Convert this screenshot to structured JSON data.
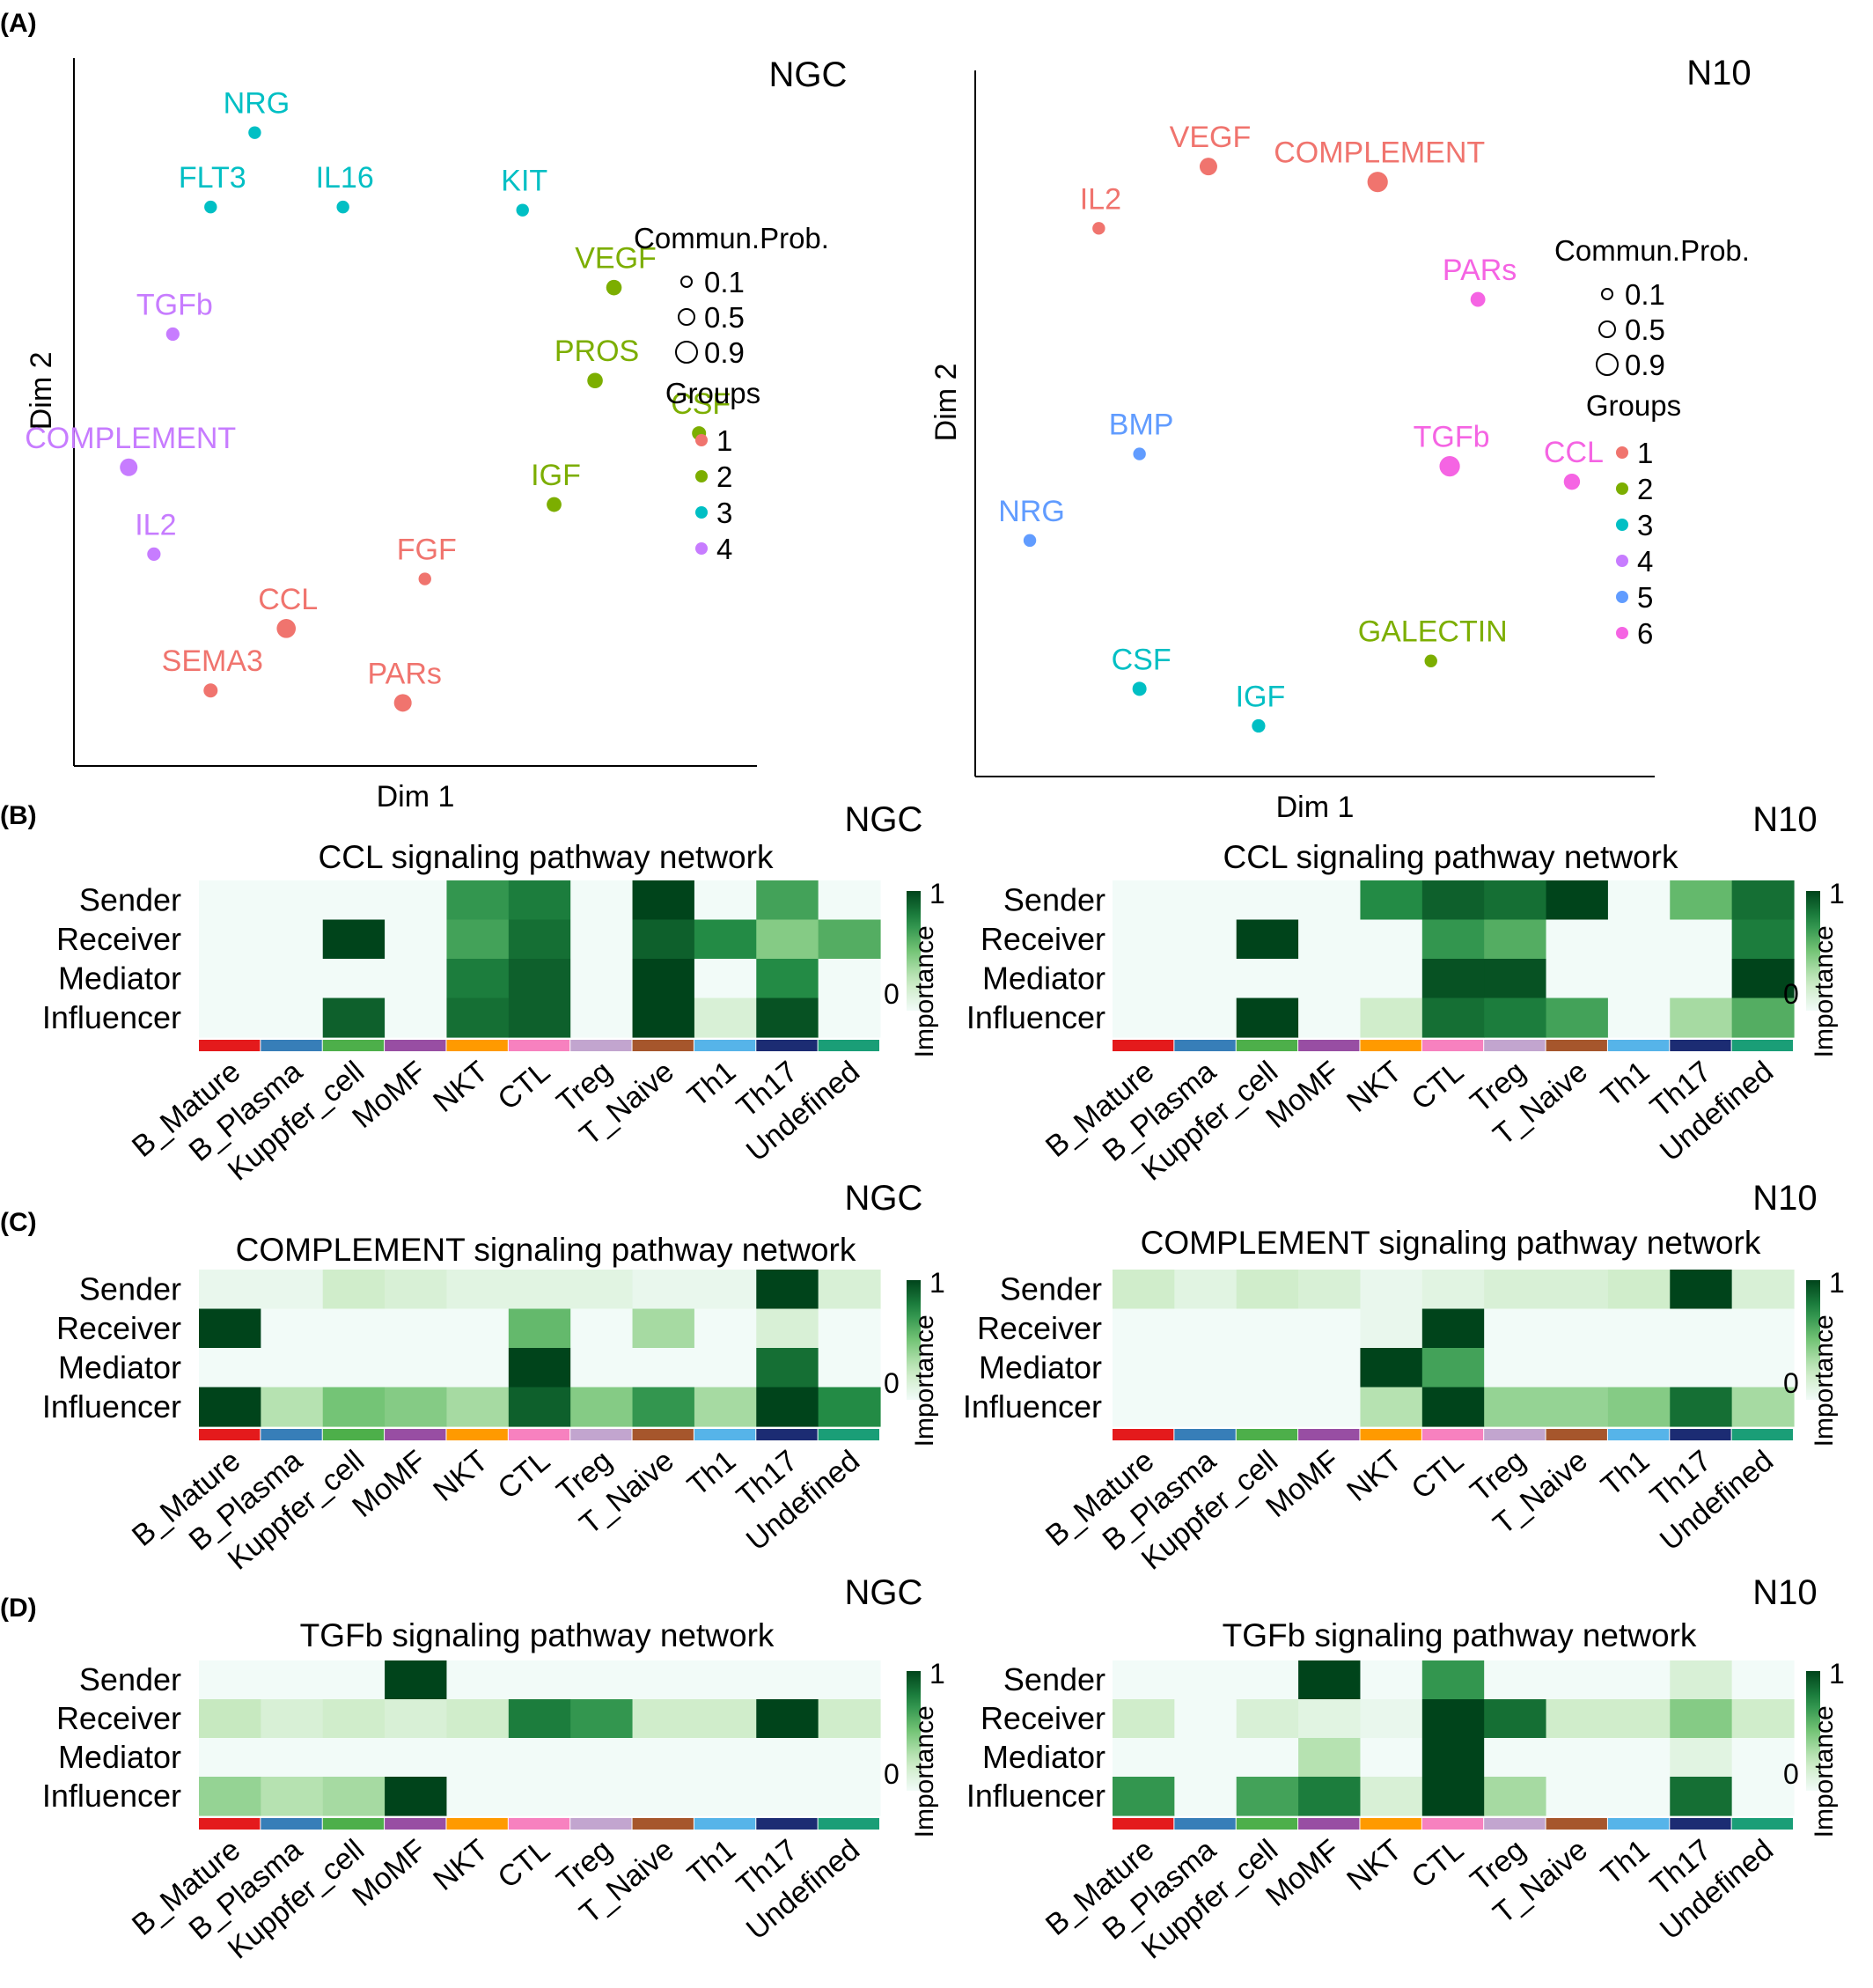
{
  "panel_letters": {
    "a": "(A)",
    "b": "(B)",
    "c": "(C)",
    "d": "(D)"
  },
  "scatter_legend": {
    "size_title": "Commun.Prob.",
    "size_values": [
      "0.1",
      "0.5",
      "0.9"
    ],
    "group_title": "Groups"
  },
  "heat_legend": {
    "title": "Importance",
    "max_label": "1",
    "min_label": "0",
    "low_color": "#f2fbf8",
    "high_color": "#00441b"
  },
  "cell_types": [
    "B_Mature",
    "B_Plasma",
    "Kuppfer_cell",
    "MoMF",
    "NKT",
    "CTL",
    "Treg",
    "T_Naive",
    "Th1",
    "Th17",
    "Undefined"
  ],
  "cell_colors": [
    "#e41a1c",
    "#377eb8",
    "#4daf4a",
    "#984ea3",
    "#ff9a00",
    "#f781bf",
    "#c2a5cf",
    "#a6562c",
    "#56b4e9",
    "#1c2c73",
    "#1a9e77"
  ],
  "roles": [
    "Sender",
    "Receiver",
    "Mediator",
    "Influencer"
  ],
  "chart_data": [
    {
      "type": "scatter",
      "id": "A-NGC",
      "title": "NGC",
      "xlabel": "Dim 1",
      "ylabel": "Dim 2",
      "group_colors": {
        "1": "#f0746e",
        "2": "#7cae00",
        "3": "#00bfc4",
        "4": "#c77cff"
      },
      "groups": [
        "1",
        "2",
        "3",
        "4"
      ],
      "points": [
        {
          "label": "NRG",
          "x": 0.245,
          "y": 0.965,
          "group": "3",
          "prob": 0.15
        },
        {
          "label": "FLT3",
          "x": 0.175,
          "y": 0.845,
          "group": "3",
          "prob": 0.15
        },
        {
          "label": "IL16",
          "x": 0.385,
          "y": 0.845,
          "group": "3",
          "prob": 0.15
        },
        {
          "label": "KIT",
          "x": 0.67,
          "y": 0.84,
          "group": "3",
          "prob": 0.15
        },
        {
          "label": "VEGF",
          "x": 0.815,
          "y": 0.715,
          "group": "2",
          "prob": 0.35
        },
        {
          "label": "PROS",
          "x": 0.785,
          "y": 0.565,
          "group": "2",
          "prob": 0.35
        },
        {
          "label": "CSF",
          "x": 0.95,
          "y": 0.48,
          "group": "2",
          "prob": 0.25
        },
        {
          "label": "IGF",
          "x": 0.72,
          "y": 0.365,
          "group": "2",
          "prob": 0.3
        },
        {
          "label": "TGFb",
          "x": 0.115,
          "y": 0.64,
          "group": "4",
          "prob": 0.2
        },
        {
          "label": "COMPLEMENT",
          "x": 0.045,
          "y": 0.425,
          "group": "4",
          "prob": 0.5
        },
        {
          "label": "IL2",
          "x": 0.085,
          "y": 0.285,
          "group": "4",
          "prob": 0.2
        },
        {
          "label": "FGF",
          "x": 0.515,
          "y": 0.245,
          "group": "1",
          "prob": 0.15
        },
        {
          "label": "CCL",
          "x": 0.295,
          "y": 0.165,
          "group": "1",
          "prob": 0.6
        },
        {
          "label": "SEMA3",
          "x": 0.175,
          "y": 0.065,
          "group": "1",
          "prob": 0.25
        },
        {
          "label": "PARs",
          "x": 0.48,
          "y": 0.045,
          "group": "1",
          "prob": 0.5
        }
      ]
    },
    {
      "type": "scatter",
      "id": "A-N10",
      "title": "N10",
      "xlabel": "Dim 1",
      "ylabel": "Dim 2",
      "group_colors": {
        "1": "#f0746e",
        "2": "#7cae00",
        "3": "#00bfc4",
        "4": "#c77cff",
        "5": "#619cff",
        "6": "#f564e3"
      },
      "groups": [
        "1",
        "2",
        "3",
        "4",
        "5",
        "6"
      ],
      "points": [
        {
          "label": "VEGF",
          "x": 0.33,
          "y": 0.93,
          "group": "1",
          "prob": 0.5
        },
        {
          "label": "COMPLEMENT",
          "x": 0.6,
          "y": 0.905,
          "group": "1",
          "prob": 0.7
        },
        {
          "label": "IL2",
          "x": 0.155,
          "y": 0.83,
          "group": "1",
          "prob": 0.15
        },
        {
          "label": "PARs",
          "x": 0.76,
          "y": 0.715,
          "group": "6",
          "prob": 0.3
        },
        {
          "label": "TGFb",
          "x": 0.715,
          "y": 0.445,
          "group": "6",
          "prob": 0.7
        },
        {
          "label": "CCL",
          "x": 0.91,
          "y": 0.42,
          "group": "6",
          "prob": 0.4
        },
        {
          "label": "BMP",
          "x": 0.22,
          "y": 0.465,
          "group": "5",
          "prob": 0.15
        },
        {
          "label": "NRG",
          "x": 0.045,
          "y": 0.325,
          "group": "5",
          "prob": 0.15
        },
        {
          "label": "GALECTIN",
          "x": 0.685,
          "y": 0.13,
          "group": "2",
          "prob": 0.15
        },
        {
          "label": "CSF",
          "x": 0.22,
          "y": 0.085,
          "group": "3",
          "prob": 0.25
        },
        {
          "label": "IGF",
          "x": 0.41,
          "y": 0.025,
          "group": "3",
          "prob": 0.2
        }
      ]
    },
    {
      "type": "heatmap",
      "id": "B-NGC",
      "panel": "NGC",
      "title": "CCL signaling pathway network",
      "values": [
        [
          0,
          0,
          0,
          0,
          0.7,
          0.8,
          0,
          1,
          0,
          0.65,
          0
        ],
        [
          0,
          0,
          1,
          0,
          0.65,
          0.85,
          0,
          0.9,
          0.75,
          0.45,
          0.6
        ],
        [
          0,
          0,
          0,
          0,
          0.8,
          0.9,
          0,
          1,
          0,
          0.75,
          0
        ],
        [
          0,
          0,
          0.9,
          0,
          0.85,
          0.9,
          0,
          1,
          0.15,
          0.95,
          0
        ]
      ]
    },
    {
      "type": "heatmap",
      "id": "B-N10",
      "panel": "N10",
      "title": "CCL signaling pathway network",
      "values": [
        [
          0,
          0,
          0,
          0,
          0.75,
          0.9,
          0.85,
          1,
          0,
          0.55,
          0.85
        ],
        [
          0,
          0,
          1,
          0,
          0,
          0.7,
          0.6,
          0,
          0,
          0,
          0.8
        ],
        [
          0,
          0,
          0,
          0,
          0,
          0.95,
          0.95,
          0,
          0,
          0,
          1
        ],
        [
          0,
          0,
          1,
          0,
          0.2,
          0.85,
          0.8,
          0.65,
          0,
          0.35,
          0.6
        ]
      ]
    },
    {
      "type": "heatmap",
      "id": "C-NGC",
      "panel": "NGC",
      "title": "COMPLEMENT signaling pathway network",
      "values": [
        [
          0.05,
          0.05,
          0.2,
          0.15,
          0.1,
          0.1,
          0.1,
          0.05,
          0.05,
          1,
          0.15
        ],
        [
          1,
          0,
          0,
          0,
          0,
          0.55,
          0,
          0.35,
          0,
          0.15,
          0
        ],
        [
          0,
          0,
          0,
          0,
          0,
          1,
          0,
          0,
          0,
          0.85,
          0
        ],
        [
          1,
          0.3,
          0.5,
          0.45,
          0.35,
          0.9,
          0.45,
          0.7,
          0.35,
          1,
          0.75
        ]
      ]
    },
    {
      "type": "heatmap",
      "id": "C-N10",
      "panel": "N10",
      "title": "COMPLEMENT signaling pathway network",
      "values": [
        [
          0.2,
          0.1,
          0.2,
          0.15,
          0.05,
          0.1,
          0.15,
          0.15,
          0.2,
          1,
          0.15
        ],
        [
          0,
          0,
          0,
          0,
          0.05,
          1,
          0,
          0,
          0,
          0,
          0
        ],
        [
          0,
          0,
          0,
          0,
          1,
          0.65,
          0,
          0,
          0,
          0,
          0
        ],
        [
          0,
          0,
          0,
          0,
          0.3,
          1,
          0.4,
          0.4,
          0.45,
          0.85,
          0.35
        ]
      ]
    },
    {
      "type": "heatmap",
      "id": "D-NGC",
      "panel": "NGC",
      "title": "TGFb signaling pathway network",
      "values": [
        [
          0,
          0,
          0,
          1,
          0,
          0,
          0,
          0,
          0,
          0,
          0
        ],
        [
          0.25,
          0.15,
          0.2,
          0.15,
          0.2,
          0.8,
          0.7,
          0.2,
          0.2,
          1,
          0.2
        ],
        [
          0,
          0,
          0,
          0,
          0,
          0,
          0,
          0,
          0,
          0,
          0
        ],
        [
          0.4,
          0.3,
          0.35,
          1,
          0,
          0,
          0,
          0,
          0,
          0,
          0
        ]
      ]
    },
    {
      "type": "heatmap",
      "id": "D-N10",
      "panel": "N10",
      "title": "TGFb signaling pathway network",
      "values": [
        [
          0,
          0,
          0,
          1,
          0,
          0.7,
          0,
          0,
          0,
          0.15,
          0
        ],
        [
          0.2,
          0,
          0.15,
          0.1,
          0.05,
          1,
          0.85,
          0.2,
          0.2,
          0.45,
          0.2
        ],
        [
          0,
          0,
          0,
          0.3,
          0,
          1,
          0,
          0,
          0,
          0.1,
          0
        ],
        [
          0.7,
          0,
          0.65,
          0.8,
          0.15,
          1,
          0.35,
          0,
          0,
          0.85,
          0
        ]
      ]
    }
  ]
}
